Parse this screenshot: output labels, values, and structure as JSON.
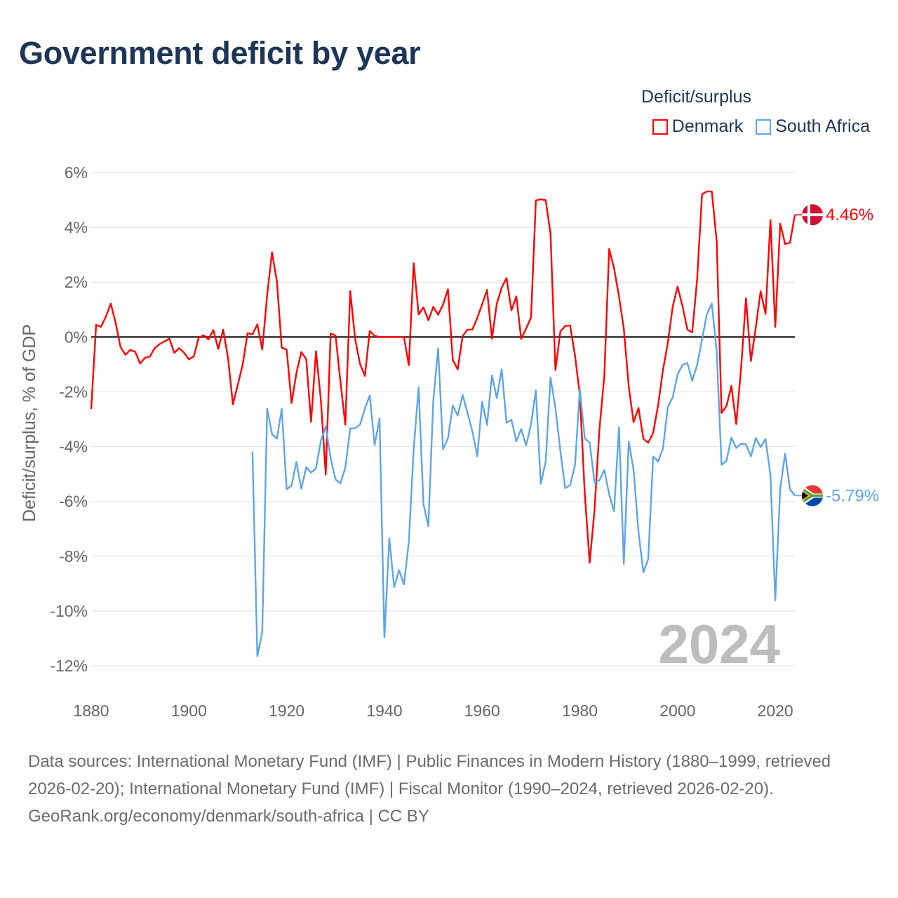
{
  "title": "Government deficit by year",
  "legend": {
    "title": "Deficit/surplus",
    "items": [
      {
        "label": "Denmark",
        "color": "#ff0000"
      },
      {
        "label": "South Africa",
        "color": "#5da5ea"
      }
    ]
  },
  "watermark_year": "2024",
  "source": {
    "text": "Data sources: International Monetary Fund (IMF) | Public Finances in Modern History (1880–1999, retrieved 2026-02-20); International Monetary Fund (IMF) | Fiscal Monitor (1990–2024, retrieved 2026-02-20).",
    "credit": "GeoRank.org/economy/denmark/south-africa | CC BY"
  },
  "chart_data": {
    "type": "line",
    "title": "Government deficit by year",
    "xlabel": "",
    "ylabel": "Deficit/surplus, % of GDP",
    "xlim": [
      1880,
      2024
    ],
    "ylim": [
      -12,
      6
    ],
    "x_ticks": [
      1880,
      1900,
      1920,
      1940,
      1960,
      1980,
      2000,
      2020
    ],
    "x_tick_labels": [
      "1880",
      "1900",
      "1920",
      "1940",
      "1960",
      "1980",
      "2000",
      "2020"
    ],
    "y_ticks": [
      6,
      4,
      2,
      0,
      -2,
      -4,
      -6,
      -8,
      -10,
      -12
    ],
    "y_tick_labels": [
      "6%",
      "4%",
      "2%",
      "0%",
      "-2%",
      "-4%",
      "-6%",
      "-8%",
      "-10%",
      "-12%"
    ],
    "grid": true,
    "legend_position": "top-right",
    "series": [
      {
        "name": "Denmark",
        "color": "#ff0000",
        "end_label": "4.46%",
        "start_year": 1880,
        "values": [
          -2.63,
          0.44,
          0.37,
          0.74,
          1.22,
          0.52,
          -0.37,
          -0.65,
          -0.47,
          -0.54,
          -0.97,
          -0.76,
          -0.71,
          -0.41,
          -0.26,
          -0.16,
          -0.06,
          -0.58,
          -0.41,
          -0.57,
          -0.82,
          -0.7,
          -0.03,
          0.06,
          -0.09,
          0.25,
          -0.44,
          0.27,
          -0.76,
          -2.46,
          -1.74,
          -1.01,
          0.14,
          0.1,
          0.46,
          -0.46,
          1.53,
          3.09,
          2.02,
          -0.39,
          -0.46,
          -2.41,
          -1.32,
          -0.55,
          -0.81,
          -3.1,
          -0.52,
          -2.31,
          -5.02,
          0.13,
          0.05,
          -1.62,
          -3.2,
          1.68,
          -0.05,
          -0.98,
          -1.42,
          0.22,
          0.04,
          0,
          0,
          0,
          0,
          0,
          0,
          -1.03,
          2.69,
          0.82,
          1.08,
          0.61,
          1.1,
          0.81,
          1.18,
          1.74,
          -0.84,
          -1.18,
          0.03,
          0.27,
          0.27,
          0.7,
          1.19,
          1.72,
          -0.06,
          1.21,
          1.8,
          2.15,
          0.97,
          1.48,
          -0.07,
          0.31,
          0.71,
          4.98,
          5.03,
          4.99,
          3.77,
          -1.21,
          0.2,
          0.4,
          0.42,
          -0.67,
          -2.12,
          -5.7,
          -8.24,
          -6.32,
          -3.38,
          -1.42,
          3.21,
          2.51,
          1.48,
          0.3,
          -1.81,
          -3.11,
          -2.59,
          -3.72,
          -3.86,
          -3.5,
          -2.5,
          -1.22,
          -0.22,
          1.11,
          1.84,
          1.13,
          0.27,
          0.17,
          2.12,
          5.21,
          5.31,
          5.31,
          3.48,
          -2.77,
          -2.52,
          -1.79,
          -3.18,
          -1.12,
          1.41,
          -0.88,
          0.35,
          1.67,
          0.84,
          4.27,
          0.37,
          4.13,
          3.39,
          3.44,
          4.46
        ]
      },
      {
        "name": "South Africa",
        "color": "#5da5ea",
        "end_label": "-5.79%",
        "start_year": 1913,
        "values": [
          -4.18,
          -11.65,
          -10.78,
          -2.61,
          -3.54,
          -3.71,
          -2.62,
          -5.56,
          -5.42,
          -4.56,
          -5.54,
          -4.75,
          -4.95,
          -4.79,
          -3.79,
          -3.26,
          -4.43,
          -5.2,
          -5.34,
          -4.78,
          -3.34,
          -3.33,
          -3.2,
          -2.61,
          -2.14,
          -3.94,
          -2.98,
          -10.96,
          -7.35,
          -9.13,
          -8.51,
          -9.03,
          -7.48,
          -4.08,
          -1.84,
          -6.1,
          -6.9,
          -2.32,
          -0.41,
          -4.1,
          -3.7,
          -2.5,
          -2.87,
          -2.12,
          -2.76,
          -3.44,
          -4.36,
          -2.36,
          -3.21,
          -1.4,
          -2.23,
          -1.18,
          -3.13,
          -3.02,
          -3.81,
          -3.36,
          -3.96,
          -3.19,
          -1.95,
          -5.36,
          -4.55,
          -1.48,
          -2.59,
          -4.15,
          -5.52,
          -5.41,
          -4.67,
          -1.91,
          -3.7,
          -3.86,
          -5.3,
          -5.24,
          -4.85,
          -5.74,
          -6.36,
          -3.3,
          -8.29,
          -3.82,
          -4.85,
          -7.12,
          -8.59,
          -8.1,
          -4.36,
          -4.55,
          -4.08,
          -2.55,
          -2.2,
          -1.37,
          -1.02,
          -0.95,
          -1.6,
          -1.02,
          -0.09,
          0.84,
          1.22,
          -0.54,
          -4.67,
          -4.52,
          -3.67,
          -4.05,
          -3.89,
          -3.92,
          -4.36,
          -3.69,
          -4.02,
          -3.72,
          -5.05,
          -9.61,
          -5.54,
          -4.26,
          -5.55,
          -5.79
        ]
      }
    ]
  }
}
